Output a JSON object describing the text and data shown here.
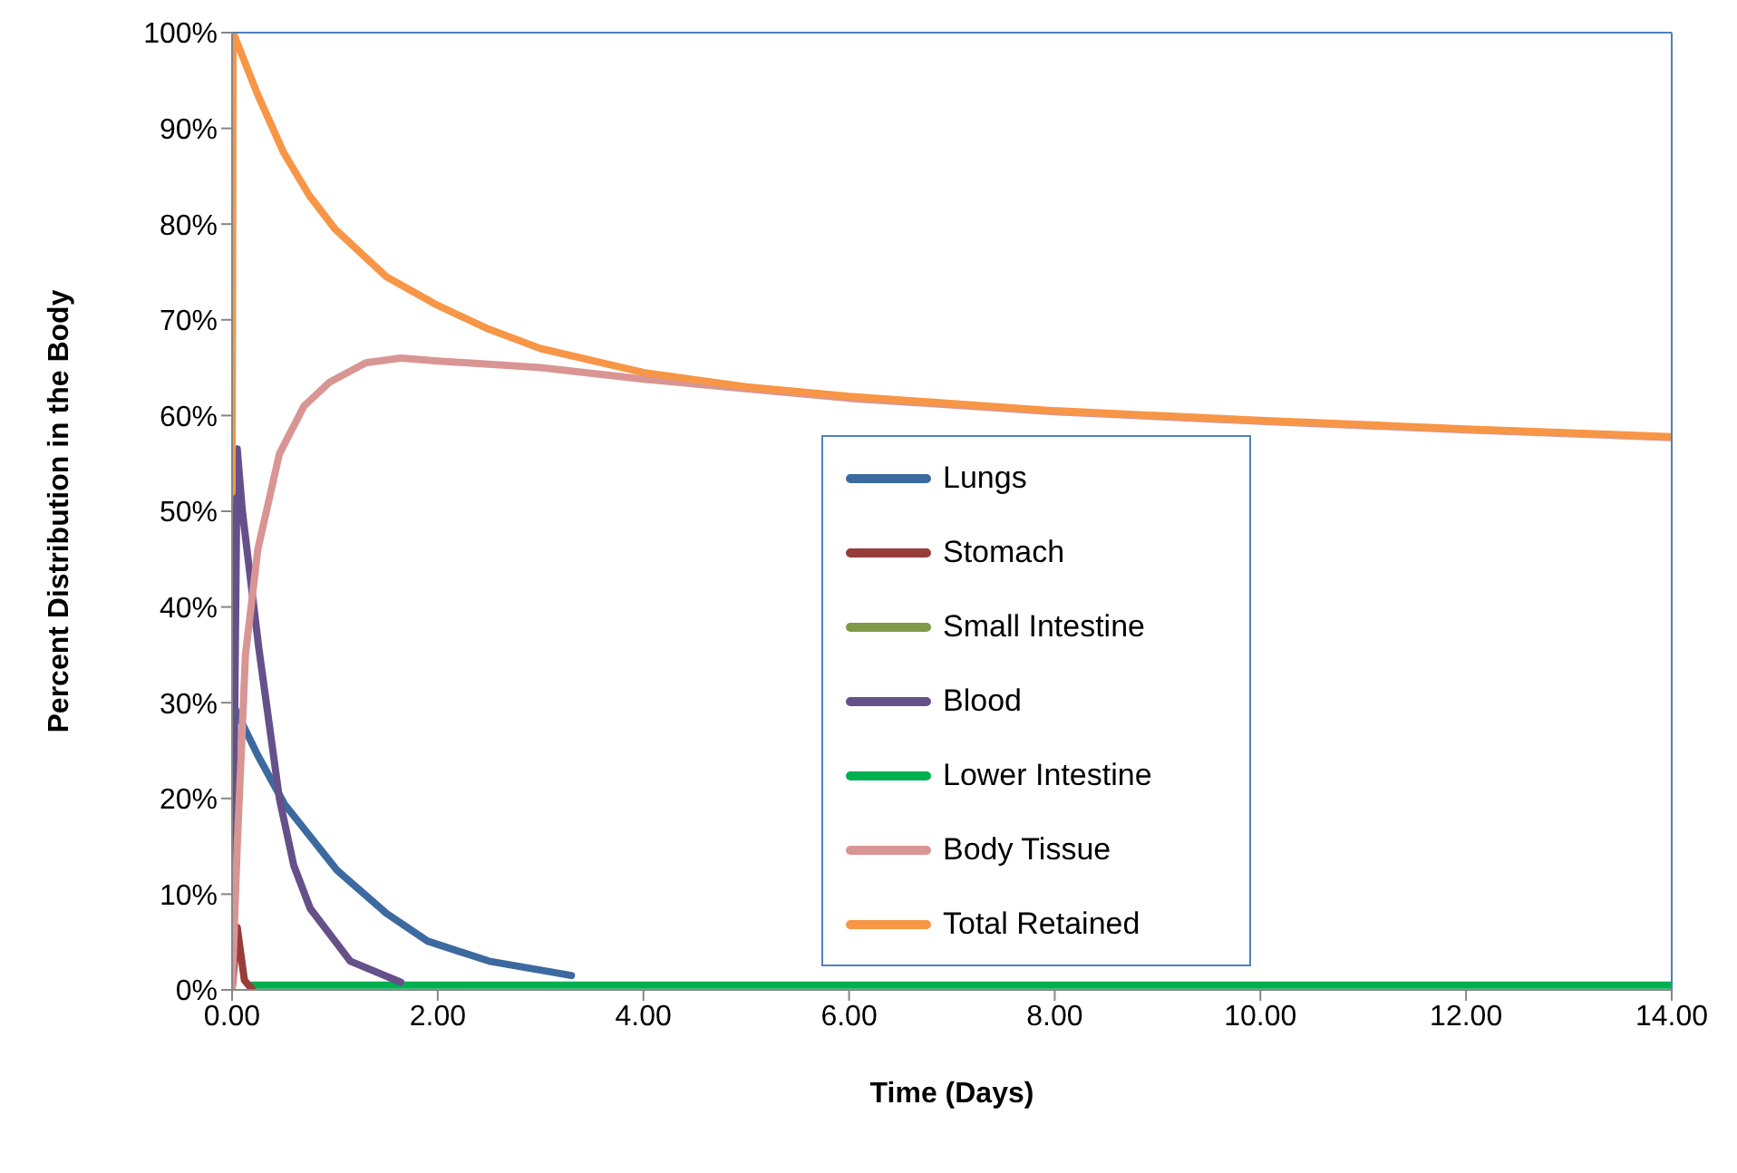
{
  "chart_data": {
    "type": "line",
    "xlabel": "Time (Days)",
    "ylabel": "Percent Distribution in the Body",
    "xlim": [
      0,
      14
    ],
    "xticks": [
      {
        "value": 0,
        "label": "0.00"
      },
      {
        "value": 2,
        "label": "2.00"
      },
      {
        "value": 4,
        "label": "4.00"
      },
      {
        "value": 6,
        "label": "6.00"
      },
      {
        "value": 8,
        "label": "8.00"
      },
      {
        "value": 10,
        "label": "10.00"
      },
      {
        "value": 12,
        "label": "12.00"
      },
      {
        "value": 14,
        "label": "14.00"
      }
    ],
    "ylim": [
      0,
      100
    ],
    "yticks": [
      {
        "value": 0,
        "label": "0%"
      },
      {
        "value": 10,
        "label": "10%"
      },
      {
        "value": 20,
        "label": "20%"
      },
      {
        "value": 30,
        "label": "30%"
      },
      {
        "value": 40,
        "label": "40%"
      },
      {
        "value": 50,
        "label": "50%"
      },
      {
        "value": 60,
        "label": "60%"
      },
      {
        "value": 70,
        "label": "70%"
      },
      {
        "value": 80,
        "label": "80%"
      },
      {
        "value": 90,
        "label": "90%"
      },
      {
        "value": 100,
        "label": "100%"
      }
    ],
    "grid": false,
    "legend": "bottom",
    "marker": "none",
    "line_style": "solid",
    "series": [
      {
        "name": "Lungs",
        "color": "#3c6aa0",
        "x": [
          0,
          0.25,
          0.51,
          1.02,
          1.5,
          1.9,
          2.5,
          3.3
        ],
        "values": [
          30,
          24.5,
          19.4,
          12.5,
          8,
          5.1,
          3,
          1.5
        ]
      },
      {
        "name": "Stomach",
        "color": "#983c3a",
        "x": [
          0,
          0.05,
          0.12,
          0.2
        ],
        "values": [
          0,
          6.5,
          1,
          0
        ]
      },
      {
        "name": "Small Intestine",
        "color": "#7f9a48"
      },
      {
        "name": "Blood",
        "color": "#65508a",
        "x": [
          0,
          0.05,
          0.1,
          0.26,
          0.46,
          0.6,
          0.76,
          1.15,
          1.64
        ],
        "values": [
          0,
          56.5,
          50,
          35.7,
          20,
          13,
          8.5,
          3,
          0.8
        ]
      },
      {
        "name": "Lower Intestine",
        "color": "#00b050",
        "x": [
          0.2,
          10,
          14
        ],
        "values": [
          0.5,
          0.5,
          0.5
        ]
      },
      {
        "name": "Body Tissue",
        "color": "#d99594",
        "x": [
          0,
          0.05,
          0.13,
          0.25,
          0.46,
          0.7,
          0.95,
          1.3,
          1.64,
          2,
          3,
          4,
          6,
          8,
          10,
          12,
          14
        ],
        "values": [
          0,
          15,
          35,
          46,
          56,
          61,
          63.5,
          65.5,
          66,
          65.7,
          65,
          63.8,
          61.8,
          60.4,
          59.4,
          58.5,
          57.7
        ]
      },
      {
        "name": "Total Retained",
        "color": "#f79646",
        "x": [
          0,
          0.01,
          0.25,
          0.5,
          0.75,
          1,
          1.5,
          2,
          2.5,
          3,
          4,
          5,
          6,
          8,
          10,
          12,
          14
        ],
        "values": [
          52,
          100,
          93.5,
          87.5,
          83,
          79.5,
          74.5,
          71.5,
          69,
          67,
          64.5,
          63,
          62,
          60.5,
          59.5,
          58.6,
          57.8
        ]
      }
    ]
  }
}
